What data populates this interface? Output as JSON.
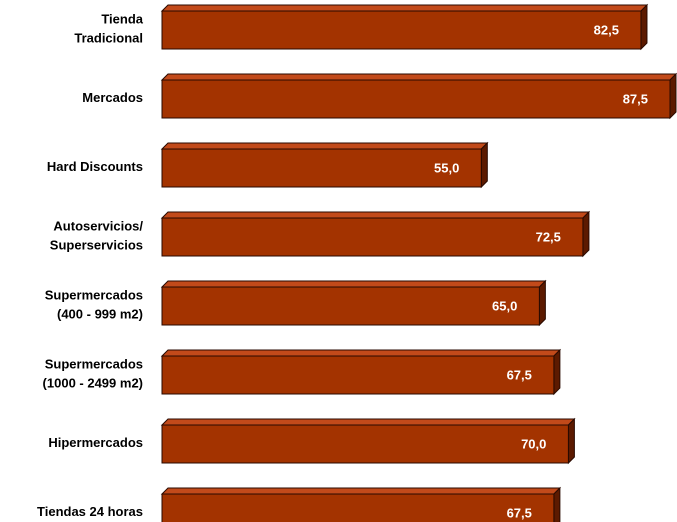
{
  "chart_data": {
    "type": "bar",
    "orientation": "horizontal",
    "title": "",
    "xlabel": "",
    "ylabel": "",
    "categories": [
      [
        "Tienda",
        "Tradicional"
      ],
      [
        "Mercados"
      ],
      [
        "Hard Discounts"
      ],
      [
        "Autoservicios/",
        "Superservicios"
      ],
      [
        "Supermercados",
        "(400 - 999 m2)"
      ],
      [
        "Supermercados",
        "(1000 - 2499 m2)"
      ],
      [
        "Hipermercados"
      ],
      [
        "Tiendas 24 horas"
      ]
    ],
    "values": [
      82.5,
      87.5,
      55.0,
      72.5,
      65.0,
      67.5,
      70.0,
      67.5
    ],
    "value_labels": [
      "82,5",
      "87,5",
      "55,0",
      "72,5",
      "65,0",
      "67,5",
      "70,0",
      "67,5"
    ],
    "xlim": [
      0,
      87.5
    ],
    "grid": false,
    "legend": "none",
    "colors": {
      "bar_front": "#a33300",
      "bar_top": "#c24a1a",
      "bar_side": "#5c1a00",
      "outline": "#2a0a00",
      "value_text": "#ffffff",
      "category_text": "#000000"
    }
  }
}
